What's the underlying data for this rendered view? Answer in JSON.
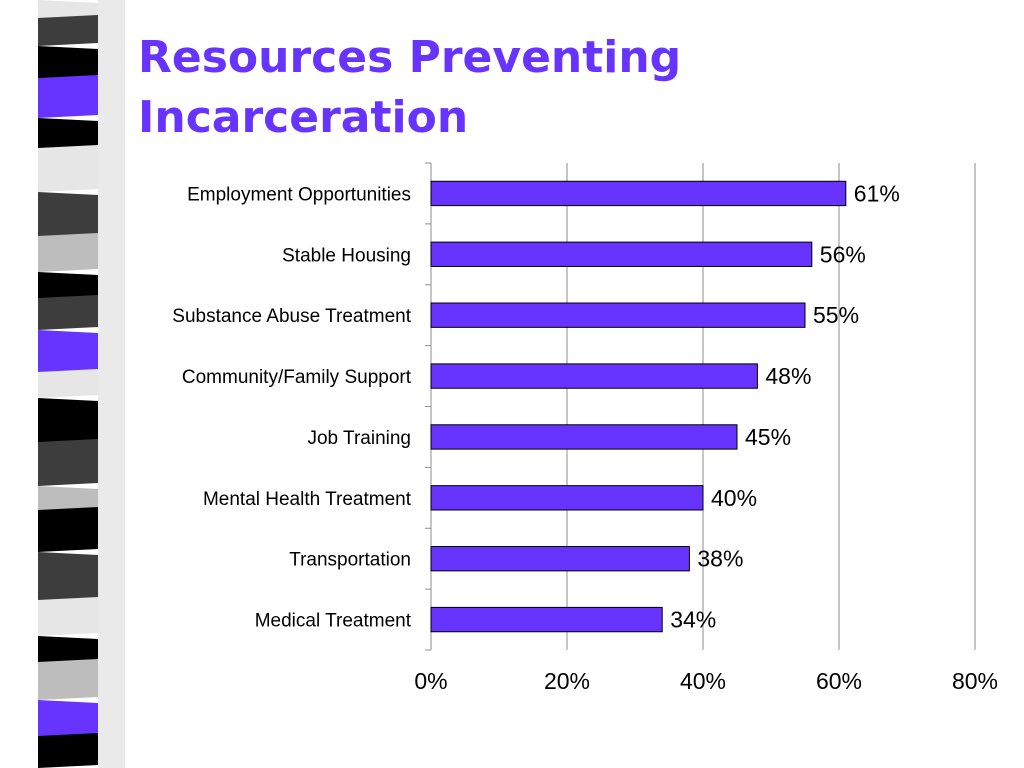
{
  "slide": {
    "title": "Resources Preventing Incarceration"
  },
  "colors": {
    "accent": "#6633ff",
    "bar_fill": "#6633ff",
    "bar_stroke": "#000000"
  },
  "chart_data": {
    "type": "bar",
    "orientation": "horizontal",
    "categories": [
      "Employment Opportunities",
      "Stable Housing",
      "Substance Abuse Treatment",
      "Community/Family Support",
      "Job Training",
      "Mental Health Treatment",
      "Transportation",
      "Medical Treatment"
    ],
    "values": [
      61,
      56,
      55,
      48,
      45,
      40,
      38,
      34
    ],
    "data_labels": [
      "61%",
      "56%",
      "55%",
      "48%",
      "45%",
      "40%",
      "38%",
      "34%"
    ],
    "xlim": [
      0,
      80
    ],
    "x_ticks": [
      0,
      20,
      40,
      60,
      80
    ],
    "x_tick_labels": [
      "0%",
      "20%",
      "40%",
      "60%",
      "80%"
    ],
    "grid": "vertical",
    "legend": "none"
  }
}
